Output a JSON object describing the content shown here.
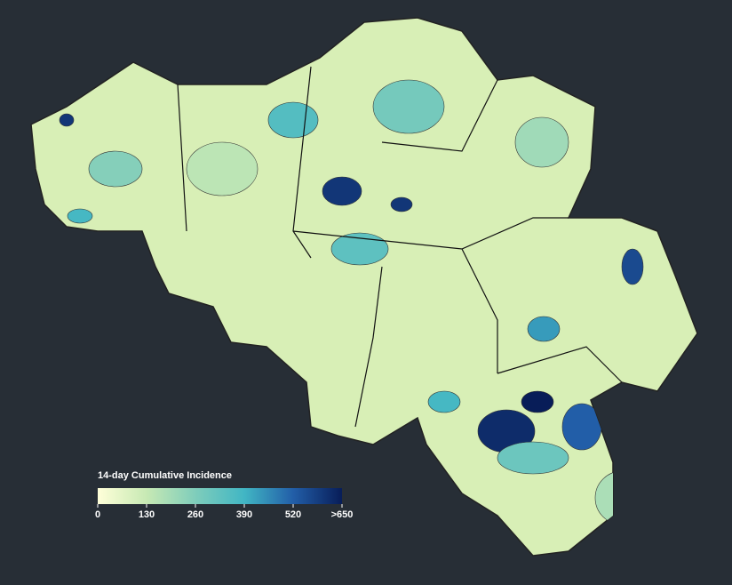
{
  "map": {
    "type": "choropleth",
    "legend": {
      "title": "14-day Cumulative Incidence",
      "lim": [
        0,
        650
      ],
      "ticks": [
        0,
        130,
        260,
        390,
        520,
        {
          "value": 650,
          "label": ">650"
        }
      ],
      "colors": [
        "#ffffd9",
        "#c7e9b4",
        "#7fcdbb",
        "#41b6c4",
        "#225ea8",
        "#081d58"
      ]
    },
    "incidence": [
      600,
      620,
      700,
      520,
      560,
      430,
      600,
      600,
      380,
      380,
      330,
      350,
      300,
      250,
      280,
      200,
      150,
      180
    ]
  }
}
